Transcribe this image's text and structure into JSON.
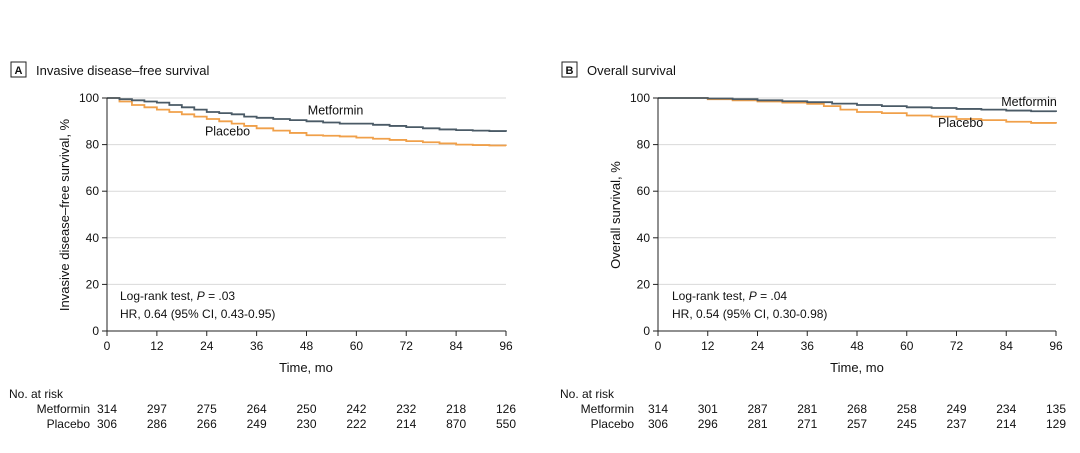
{
  "colors": {
    "metformin": "#4a5a66",
    "placebo": "#f0a04a",
    "grid": "#d9d9d9",
    "axis": "#222222"
  },
  "risk_table": {
    "header": "No. at risk"
  },
  "chart_data": [
    {
      "type": "line",
      "panel_letter": "A",
      "title": "Invasive disease–free survival",
      "xlabel": "Time, mo",
      "ylabel": "Invasive disease–free survival, %",
      "xlim": [
        0,
        96
      ],
      "ylim": [
        0,
        100
      ],
      "x_ticks": [
        "0",
        "12",
        "24",
        "36",
        "48",
        "60",
        "72",
        "84",
        "96"
      ],
      "y_ticks": [
        "0",
        "20",
        "40",
        "60",
        "80",
        "100"
      ],
      "grid": true,
      "annotation": {
        "line1_prefix": "Log-rank test, ",
        "p_label": "P",
        "line1_value": " = .03",
        "line2": "HR, 0.64 (95% CI, 0.43-0.95)"
      },
      "series": [
        {
          "name": "Metformin",
          "color_key": "metformin",
          "x": [
            0,
            3,
            6,
            9,
            12,
            15,
            18,
            21,
            24,
            27,
            30,
            33,
            36,
            40,
            44,
            48,
            52,
            56,
            60,
            64,
            68,
            72,
            76,
            80,
            84,
            88,
            92,
            96
          ],
          "y": [
            100,
            99.5,
            99,
            98.5,
            98,
            97,
            96,
            95,
            94,
            93.5,
            93,
            92,
            91.5,
            91,
            90.5,
            90,
            89.5,
            89,
            89,
            88.5,
            88,
            87.5,
            87,
            86.5,
            86.2,
            86,
            85.8,
            85.5
          ]
        },
        {
          "name": "Placebo",
          "color_key": "placebo",
          "x": [
            0,
            3,
            6,
            9,
            12,
            15,
            18,
            21,
            24,
            27,
            30,
            33,
            36,
            40,
            44,
            48,
            52,
            56,
            60,
            64,
            68,
            72,
            76,
            80,
            84,
            88,
            92,
            96
          ],
          "y": [
            100,
            98.5,
            97,
            96,
            95,
            94,
            93,
            92,
            91,
            90,
            89,
            88,
            87,
            86,
            85,
            84,
            83.8,
            83.5,
            83,
            82.5,
            82,
            81.5,
            81,
            80.5,
            80,
            79.8,
            79.6,
            79.5
          ]
        }
      ],
      "line_labels": [
        {
          "text": "Metformin",
          "x": 55,
          "y": 93
        },
        {
          "text": "Placebo",
          "x": 29,
          "y": 84
        }
      ],
      "risk_table": {
        "times": [
          0,
          12,
          24,
          36,
          48,
          60,
          72,
          84,
          96
        ],
        "rows": [
          {
            "name": "Metformin",
            "values": [
              "314",
              "297",
              "275",
              "264",
              "250",
              "242",
              "232",
              "218",
              "126"
            ]
          },
          {
            "name": "Placebo",
            "values": [
              "306",
              "286",
              "266",
              "249",
              "230",
              "222",
              "214",
              "870",
              "550"
            ]
          }
        ]
      }
    },
    {
      "type": "line",
      "panel_letter": "B",
      "title": "Overall survival",
      "xlabel": "Time, mo",
      "ylabel": "Overall survival, %",
      "xlim": [
        0,
        96
      ],
      "ylim": [
        0,
        100
      ],
      "x_ticks": [
        "0",
        "12",
        "24",
        "36",
        "48",
        "60",
        "72",
        "84",
        "96"
      ],
      "y_ticks": [
        "0",
        "20",
        "40",
        "60",
        "80",
        "100"
      ],
      "grid": true,
      "annotation": {
        "line1_prefix": "Log-rank test, ",
        "p_label": "P",
        "line1_value": " = .04",
        "line2": "HR, 0.54 (95% CI, 0.30-0.98)"
      },
      "series": [
        {
          "name": "Metformin",
          "color_key": "metformin",
          "x": [
            0,
            6,
            12,
            18,
            24,
            30,
            36,
            42,
            48,
            54,
            60,
            66,
            72,
            78,
            84,
            90,
            96
          ],
          "y": [
            100,
            100,
            99.8,
            99.5,
            99,
            98.6,
            98.2,
            97.6,
            97,
            96.5,
            96,
            95.7,
            95.3,
            95,
            94.6,
            94.3,
            94
          ]
        },
        {
          "name": "Placebo",
          "color_key": "placebo",
          "x": [
            0,
            6,
            12,
            18,
            24,
            30,
            36,
            40,
            44,
            48,
            54,
            60,
            66,
            72,
            78,
            84,
            90,
            96
          ],
          "y": [
            100,
            100,
            99.5,
            99,
            98.5,
            98,
            97.5,
            96.5,
            95,
            94,
            93.5,
            92.5,
            92,
            91,
            90.5,
            89.8,
            89.3,
            89
          ]
        }
      ],
      "line_labels": [
        {
          "text": "Metformin",
          "x": 89.5,
          "y": 96.5
        },
        {
          "text": "Placebo",
          "x": 73,
          "y": 87.5
        }
      ],
      "risk_table": {
        "times": [
          0,
          12,
          24,
          36,
          48,
          60,
          72,
          84,
          96
        ],
        "rows": [
          {
            "name": "Metformin",
            "values": [
              "314",
              "301",
              "287",
              "281",
              "268",
              "258",
              "249",
              "234",
              "135"
            ]
          },
          {
            "name": "Placebo",
            "values": [
              "306",
              "296",
              "281",
              "271",
              "257",
              "245",
              "237",
              "214",
              "129"
            ]
          }
        ]
      }
    }
  ]
}
